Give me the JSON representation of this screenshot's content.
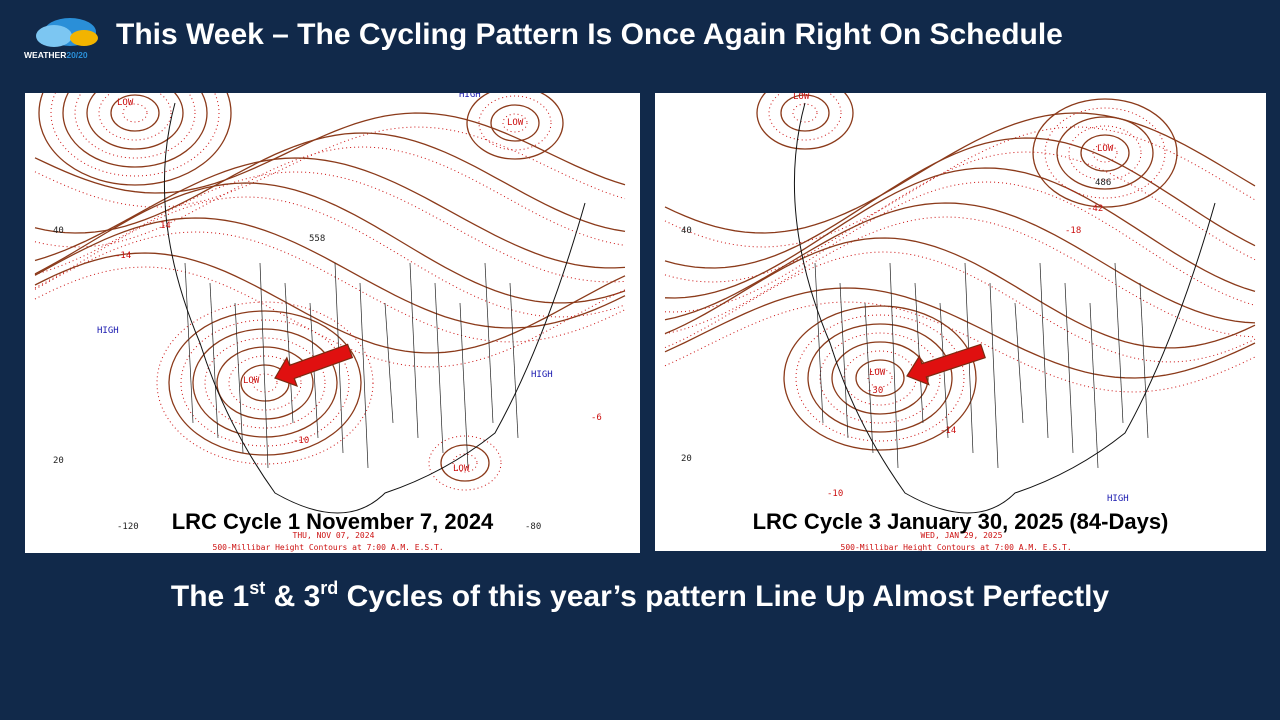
{
  "logo": {
    "brand": "WEATHER",
    "suffix": "20/20"
  },
  "header": {
    "title": "This Week – The Cycling Pattern Is Once Again Right On Schedule"
  },
  "maps": [
    {
      "caption": "LRC Cycle 1 November 7, 2024",
      "date_stamp": "THU, NOV 07, 2024",
      "footer": "500-Millibar Height Contours at 7:00 A.M. E.S.T.",
      "labels": [
        "LOW",
        "LOW",
        "LOW",
        "LOW",
        "HIGH",
        "HIGH",
        "HIGH",
        "-120",
        "-80",
        "40",
        "20",
        "14",
        "-14",
        "-10",
        "-6",
        "558"
      ]
    },
    {
      "caption": "LRC Cycle 3 January 30, 2025 (84-Days)",
      "date_stamp": "WED, JAN 29, 2025",
      "footer": "500-Millibar Height Contours at 7:00 A.M. E.S.T.",
      "labels": [
        "LOW",
        "LOW",
        "LOW",
        "HIGH",
        "40",
        "20",
        "-10",
        "-30",
        "-42",
        "-18",
        "-14",
        "486"
      ]
    }
  ],
  "footer": {
    "parts": [
      "The 1",
      "st",
      " & 3",
      "rd",
      " Cycles of this year’s pattern Line Up Almost Perfectly"
    ]
  }
}
